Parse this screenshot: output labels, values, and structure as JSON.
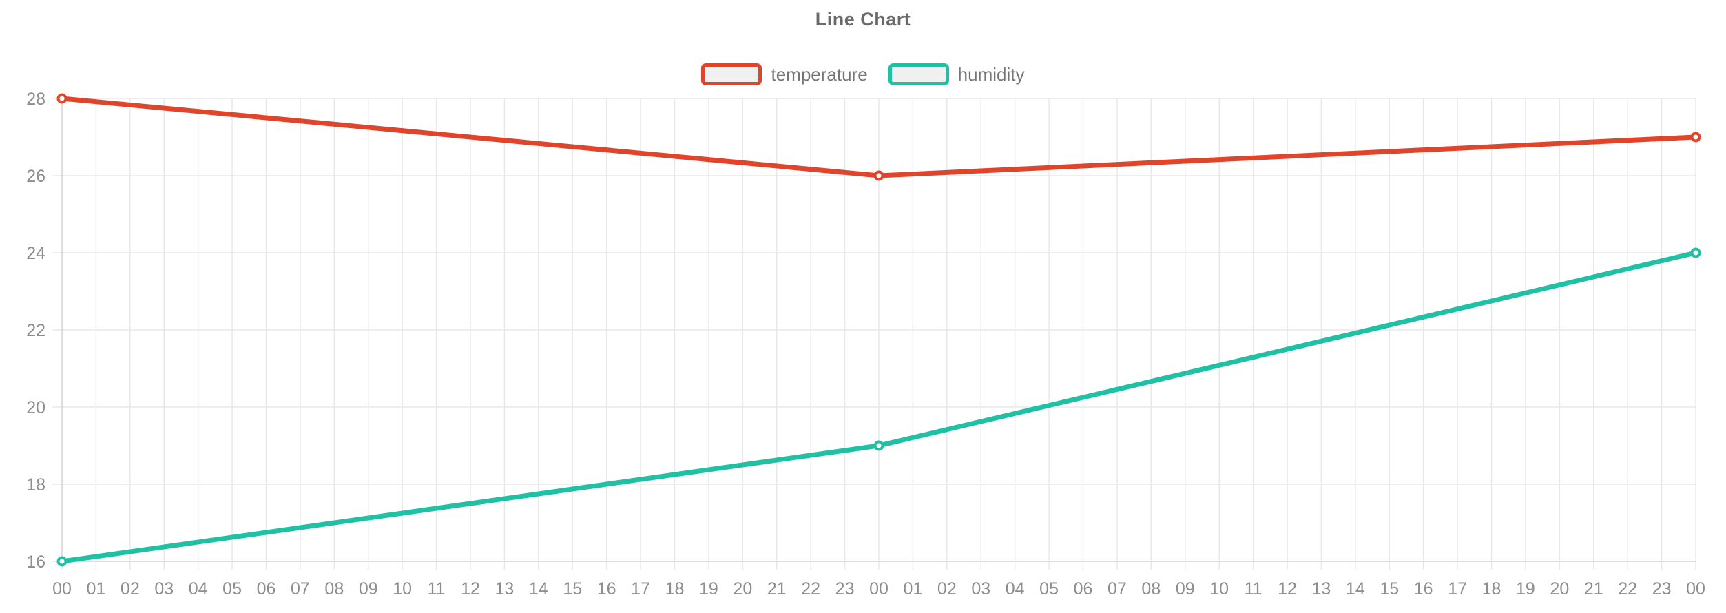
{
  "chart_data": {
    "type": "line",
    "title": "Line Chart",
    "x_labels": [
      "00",
      "01",
      "02",
      "03",
      "04",
      "05",
      "06",
      "07",
      "08",
      "09",
      "10",
      "11",
      "12",
      "13",
      "14",
      "15",
      "16",
      "17",
      "18",
      "19",
      "20",
      "21",
      "22",
      "23",
      "00",
      "01",
      "02",
      "03",
      "04",
      "05",
      "06",
      "07",
      "08",
      "09",
      "10",
      "11",
      "12",
      "13",
      "14",
      "15",
      "16",
      "17",
      "18",
      "19",
      "20",
      "21",
      "22",
      "23",
      "00"
    ],
    "y_ticks": [
      16,
      18,
      20,
      22,
      24,
      26,
      28
    ],
    "ylim": [
      16,
      28
    ],
    "grid": true,
    "legend_position": "top",
    "series": [
      {
        "name": "temperature",
        "color": "#e0452c",
        "points": [
          {
            "x_index": 0,
            "x_label": "00",
            "value": 28
          },
          {
            "x_index": 24,
            "x_label": "00",
            "value": 26
          },
          {
            "x_index": 48,
            "x_label": "00",
            "value": 27
          }
        ]
      },
      {
        "name": "humidity",
        "color": "#20c0a4",
        "points": [
          {
            "x_index": 0,
            "x_label": "00",
            "value": 16
          },
          {
            "x_index": 24,
            "x_label": "00",
            "value": 19
          },
          {
            "x_index": 48,
            "x_label": "00",
            "value": 24
          }
        ]
      }
    ],
    "colors": {
      "background": "#ffffff",
      "grid": "#e8e8e8",
      "axis": "#d8d8d8",
      "tick_label": "#8d8d8d",
      "title": "#6a6a6a",
      "legend_text": "#767676",
      "legend_swatch_fill": "#f0f0f0",
      "marker_fill": "#ffffff"
    }
  }
}
